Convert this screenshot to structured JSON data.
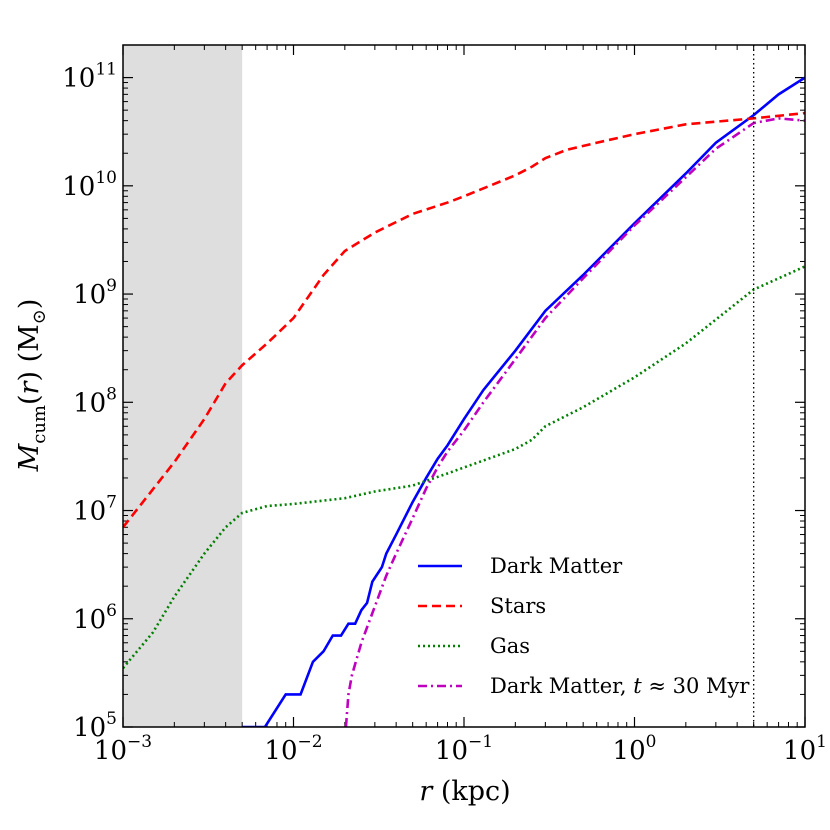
{
  "chart_data": {
    "type": "line",
    "xscale": "log",
    "yscale": "log",
    "xlim": [
      0.001,
      10
    ],
    "ylim": [
      100000,
      200000000000
    ],
    "xlabel": "r (kpc)",
    "ylabel": "M_cum(r) (M_sun)",
    "x_ticks": [
      {
        "base": "10",
        "exp": "−3"
      },
      {
        "base": "10",
        "exp": "−2"
      },
      {
        "base": "10",
        "exp": "−1"
      },
      {
        "base": "10",
        "exp": "0"
      },
      {
        "base": "10",
        "exp": "1"
      }
    ],
    "y_ticks": [
      {
        "base": "10",
        "exp": "5"
      },
      {
        "base": "10",
        "exp": "6"
      },
      {
        "base": "10",
        "exp": "7"
      },
      {
        "base": "10",
        "exp": "8"
      },
      {
        "base": "10",
        "exp": "9"
      },
      {
        "base": "10",
        "exp": "10"
      },
      {
        "base": "10",
        "exp": "11"
      }
    ],
    "shaded_region": {
      "x_from": 0.001,
      "x_to": 0.005,
      "color": "#dedede"
    },
    "vertical_line": {
      "x": 5,
      "style": "dotted",
      "color": "#000000"
    },
    "series": [
      {
        "name": "Dark Matter",
        "color": "#0000ff",
        "dash": "solid",
        "points": [
          [
            0.005,
            100000
          ],
          [
            0.0068,
            100000
          ],
          [
            0.009,
            200000
          ],
          [
            0.011,
            200000
          ],
          [
            0.013,
            400000
          ],
          [
            0.015,
            500000
          ],
          [
            0.017,
            700000
          ],
          [
            0.019,
            700000
          ],
          [
            0.021,
            900000
          ],
          [
            0.023,
            900000
          ],
          [
            0.025,
            1200000
          ],
          [
            0.027,
            1400000
          ],
          [
            0.029,
            2200000
          ],
          [
            0.033,
            3000000
          ],
          [
            0.035,
            4000000
          ],
          [
            0.04,
            6000000
          ],
          [
            0.05,
            12000000
          ],
          [
            0.06,
            20000000
          ],
          [
            0.07,
            30000000
          ],
          [
            0.08,
            40000000
          ],
          [
            0.1,
            70000000
          ],
          [
            0.13,
            130000000
          ],
          [
            0.2,
            300000000
          ],
          [
            0.3,
            700000000
          ],
          [
            0.5,
            1500000000
          ],
          [
            1,
            4500000000
          ],
          [
            2,
            13000000000
          ],
          [
            3,
            25000000000
          ],
          [
            5,
            45000000000
          ],
          [
            7,
            70000000000
          ],
          [
            10,
            100000000000
          ]
        ]
      },
      {
        "name": "Stars",
        "color": "#ff0000",
        "dash": "dashed",
        "points": [
          [
            0.001,
            7000000
          ],
          [
            0.002,
            28000000
          ],
          [
            0.003,
            70000000
          ],
          [
            0.004,
            150000000
          ],
          [
            0.005,
            220000000
          ],
          [
            0.007,
            350000000
          ],
          [
            0.01,
            600000000
          ],
          [
            0.015,
            1500000000
          ],
          [
            0.02,
            2500000000
          ],
          [
            0.03,
            3700000000
          ],
          [
            0.05,
            5500000000
          ],
          [
            0.08,
            7000000000
          ],
          [
            0.1,
            8000000000
          ],
          [
            0.2,
            12500000000
          ],
          [
            0.25,
            15000000000
          ],
          [
            0.3,
            18000000000
          ],
          [
            0.4,
            21500000000
          ],
          [
            0.6,
            25000000000
          ],
          [
            1,
            30000000000
          ],
          [
            2,
            37000000000
          ],
          [
            5,
            42000000000
          ],
          [
            10,
            47000000000
          ]
        ]
      },
      {
        "name": "Gas",
        "color": "#008000",
        "dash": "dotted",
        "points": [
          [
            0.001,
            350000
          ],
          [
            0.0015,
            750000
          ],
          [
            0.002,
            1600000
          ],
          [
            0.003,
            4000000
          ],
          [
            0.004,
            7000000
          ],
          [
            0.005,
            9500000
          ],
          [
            0.007,
            11000000
          ],
          [
            0.01,
            11500000
          ],
          [
            0.02,
            13000000
          ],
          [
            0.03,
            15000000
          ],
          [
            0.05,
            17000000
          ],
          [
            0.08,
            22000000
          ],
          [
            0.1,
            25000000
          ],
          [
            0.2,
            37000000
          ],
          [
            0.25,
            45000000
          ],
          [
            0.3,
            60000000
          ],
          [
            0.5,
            90000000
          ],
          [
            1,
            170000000
          ],
          [
            2,
            350000000
          ],
          [
            5,
            1100000000
          ],
          [
            10,
            1800000000
          ]
        ]
      },
      {
        "name": "Dark Matter, t ≈ 30 Myr",
        "color": "#bf00bf",
        "dash": "dashdot",
        "points": [
          [
            0.0203,
            100000
          ],
          [
            0.021,
            200000
          ],
          [
            0.022,
            300000
          ],
          [
            0.025,
            600000
          ],
          [
            0.03,
            1300000
          ],
          [
            0.035,
            2500000
          ],
          [
            0.04,
            4000000
          ],
          [
            0.05,
            8500000
          ],
          [
            0.06,
            16000000
          ],
          [
            0.07,
            25000000
          ],
          [
            0.08,
            35000000
          ],
          [
            0.1,
            55000000
          ],
          [
            0.13,
            100000000
          ],
          [
            0.2,
            250000000
          ],
          [
            0.3,
            600000000
          ],
          [
            0.5,
            1400000000
          ],
          [
            1,
            4300000000
          ],
          [
            2,
            12000000000
          ],
          [
            3,
            22000000000
          ],
          [
            5,
            38000000000
          ],
          [
            7,
            42000000000
          ],
          [
            10,
            40000000000
          ]
        ]
      }
    ],
    "legend": {
      "location": "lower-right",
      "entries": [
        {
          "label": "Dark Matter"
        },
        {
          "label": "Stars"
        },
        {
          "label": "Gas"
        },
        {
          "label_prefix": "Dark Matter, ",
          "label_var": "t",
          "label_suffix": " ≈ 30 Myr"
        }
      ]
    }
  }
}
